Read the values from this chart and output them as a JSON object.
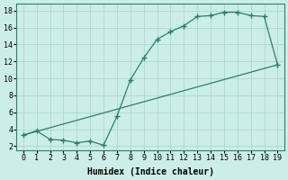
{
  "line1_x": [
    0,
    1,
    2,
    3,
    4,
    5,
    6,
    7,
    8,
    9,
    10,
    11,
    12,
    13,
    14,
    15,
    16,
    17,
    18,
    19
  ],
  "line1_y": [
    3.3,
    3.8,
    2.8,
    2.7,
    2.4,
    2.6,
    2.1,
    5.5,
    9.8,
    12.4,
    14.6,
    15.5,
    16.2,
    17.3,
    17.4,
    17.8,
    17.8,
    17.4,
    17.3,
    11.6
  ],
  "line2_x": [
    0,
    19
  ],
  "line2_y": [
    3.3,
    11.6
  ],
  "line_color": "#2d7d72",
  "marker_color": "#2d7d72",
  "bg_color": "#cceee8",
  "grid_color": "#aad8d0",
  "xlabel": "Humidex (Indice chaleur)",
  "xlabel_fontsize": 7,
  "tick_fontsize": 6,
  "xlim": [
    -0.5,
    19.5
  ],
  "ylim": [
    1.5,
    18.8
  ],
  "yticks": [
    2,
    4,
    6,
    8,
    10,
    12,
    14,
    16,
    18
  ],
  "xticks": [
    0,
    1,
    2,
    3,
    4,
    5,
    6,
    7,
    8,
    9,
    10,
    11,
    12,
    13,
    14,
    15,
    16,
    17,
    18,
    19
  ]
}
